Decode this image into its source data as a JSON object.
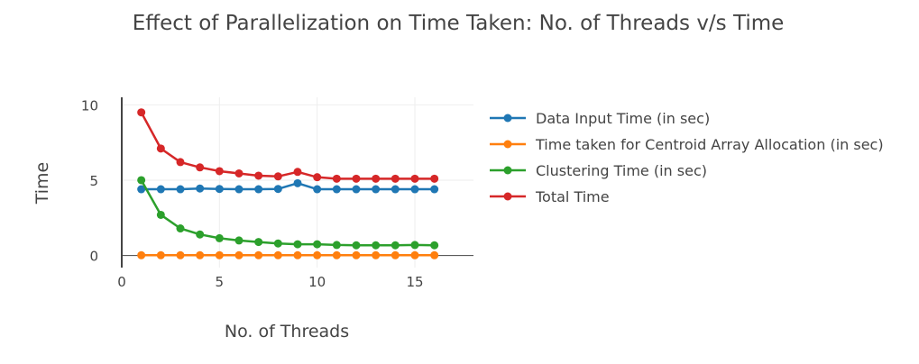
{
  "chart_data": {
    "type": "line",
    "title": "Effect of Parallelization on Time Taken: No. of Threads v/s Time",
    "xlabel": "No. of Threads",
    "ylabel": "Time",
    "x": [
      1,
      2,
      3,
      4,
      5,
      6,
      7,
      8,
      9,
      10,
      11,
      12,
      13,
      14,
      15,
      16
    ],
    "xlim": [
      0,
      18
    ],
    "ylim": [
      -0.8,
      10.5
    ],
    "xticks": [
      0,
      5,
      10,
      15
    ],
    "yticks": [
      0,
      5,
      10
    ],
    "grid": true,
    "legend_position": "right",
    "series": [
      {
        "name": "Data Input Time (in sec)",
        "color": "#1f77b4",
        "values": [
          4.4,
          4.4,
          4.4,
          4.45,
          4.42,
          4.4,
          4.4,
          4.42,
          4.8,
          4.4,
          4.4,
          4.4,
          4.4,
          4.4,
          4.4,
          4.4
        ]
      },
      {
        "name": "Time taken for Centroid Array Allocation (in sec)",
        "color": "#ff7f0e",
        "values": [
          0.02,
          0.02,
          0.02,
          0.02,
          0.02,
          0.02,
          0.02,
          0.02,
          0.02,
          0.02,
          0.02,
          0.02,
          0.02,
          0.02,
          0.02,
          0.02
        ]
      },
      {
        "name": "Clustering Time (in sec)",
        "color": "#2ca02c",
        "values": [
          5.0,
          2.7,
          1.8,
          1.4,
          1.15,
          1.0,
          0.9,
          0.8,
          0.75,
          0.75,
          0.7,
          0.68,
          0.68,
          0.68,
          0.7,
          0.68
        ]
      },
      {
        "name": "Total Time",
        "color": "#d62728",
        "values": [
          9.5,
          7.1,
          6.2,
          5.85,
          5.6,
          5.45,
          5.3,
          5.25,
          5.55,
          5.2,
          5.1,
          5.1,
          5.1,
          5.1,
          5.1,
          5.1
        ]
      }
    ]
  }
}
